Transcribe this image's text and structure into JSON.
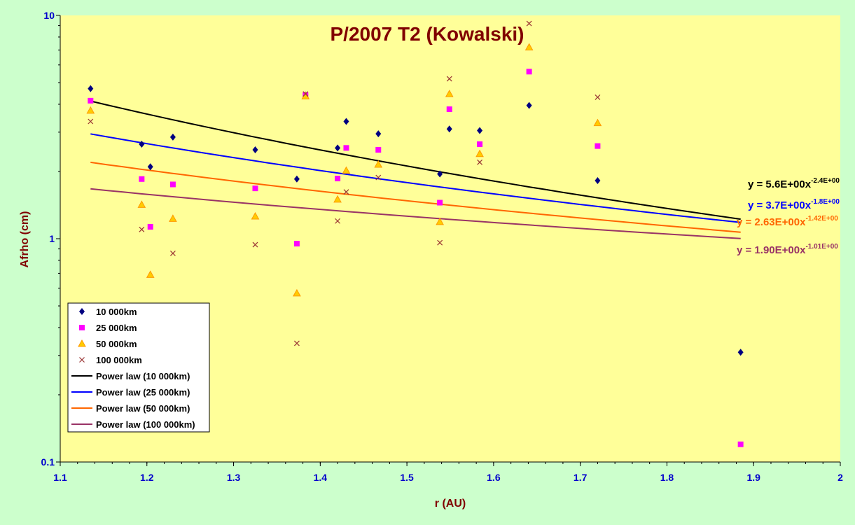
{
  "chart_data": {
    "type": "scatter",
    "title": "P/2007 T2 (Kowalski)",
    "xlabel": "r (AU)",
    "ylabel": "Afrho (cm)",
    "xlim": [
      1.1,
      2.0
    ],
    "ylim": [
      0.1,
      10
    ],
    "yscale": "log",
    "x_ticks": [
      "1.1",
      "1.2",
      "1.3",
      "1.4",
      "1.5",
      "1.6",
      "1.7",
      "1.8",
      "1.9",
      "2"
    ],
    "y_ticks": [
      "0.1",
      "1",
      "10"
    ],
    "grid": false,
    "legend_position": "bottom-left",
    "colors": {
      "plot_background": "#ffff99",
      "chart_background": "#ccffcc",
      "axis_text": "#0000cc",
      "title_text": "#800000"
    },
    "series": [
      {
        "name": "10 000km",
        "marker": "diamond",
        "color": "#000080",
        "x": [
          1.135,
          1.194,
          1.204,
          1.23,
          1.325,
          1.373,
          1.383,
          1.42,
          1.43,
          1.467,
          1.538,
          1.549,
          1.584,
          1.641,
          1.72,
          1.885
        ],
        "y": [
          4.7,
          2.65,
          2.1,
          2.85,
          2.5,
          1.85,
          4.4,
          2.55,
          3.35,
          2.95,
          1.95,
          3.1,
          3.05,
          3.95,
          1.82,
          0.31
        ]
      },
      {
        "name": "25 000km",
        "marker": "square",
        "color": "#ff00ff",
        "x": [
          1.135,
          1.194,
          1.204,
          1.23,
          1.325,
          1.373,
          1.383,
          1.42,
          1.43,
          1.467,
          1.538,
          1.549,
          1.584,
          1.641,
          1.72,
          1.885
        ],
        "y": [
          4.15,
          1.85,
          1.13,
          1.75,
          1.68,
          0.95,
          4.4,
          1.86,
          2.55,
          2.5,
          1.45,
          3.8,
          2.65,
          5.6,
          2.6,
          0.12
        ]
      },
      {
        "name": "50 000km",
        "marker": "triangle",
        "color": "#ff9900",
        "x": [
          1.135,
          1.194,
          1.204,
          1.23,
          1.325,
          1.373,
          1.383,
          1.42,
          1.43,
          1.467,
          1.538,
          1.549,
          1.584,
          1.641,
          1.72
        ],
        "y": [
          3.75,
          1.42,
          0.69,
          1.23,
          1.26,
          0.57,
          4.35,
          1.5,
          2.02,
          2.15,
          1.19,
          4.45,
          2.4,
          7.2,
          3.3
        ]
      },
      {
        "name": "100 000km",
        "marker": "x",
        "color": "#993333",
        "x": [
          1.135,
          1.194,
          1.23,
          1.325,
          1.373,
          1.383,
          1.42,
          1.43,
          1.467,
          1.538,
          1.549,
          1.584,
          1.641,
          1.72
        ],
        "y": [
          3.35,
          1.1,
          0.86,
          0.94,
          0.34,
          4.45,
          1.2,
          1.62,
          1.88,
          0.96,
          5.2,
          2.2,
          9.2,
          4.3
        ]
      }
    ],
    "fits": [
      {
        "name": "Power law (10 000km)",
        "color": "#000000",
        "coef": 5.6,
        "exp": -2.4,
        "x_range": [
          1.135,
          1.885
        ],
        "eq_main": "y = 5.6E+00x",
        "eq_exp": "-2.4E+00",
        "eq_color": "#000000"
      },
      {
        "name": "Power law (25 000km)",
        "color": "#0000ff",
        "coef": 3.7,
        "exp": -1.8,
        "x_range": [
          1.135,
          1.885
        ],
        "eq_main": "y = 3.7E+00x",
        "eq_exp": "-1.8E+00",
        "eq_color": "#0000ff"
      },
      {
        "name": "Power law (50 000km)",
        "color": "#ff6600",
        "coef": 2.63,
        "exp": -1.42,
        "x_range": [
          1.135,
          1.885
        ],
        "eq_main": "y = 2.63E+00x",
        "eq_exp": "-1.42E+00",
        "eq_color": "#ff6600"
      },
      {
        "name": "Power law (100 000km)",
        "color": "#993366",
        "coef": 1.9,
        "exp": -1.01,
        "x_range": [
          1.135,
          1.885
        ],
        "eq_main": "y = 1.90E+00x",
        "eq_exp": "-1.01E+00",
        "eq_color": "#993366"
      }
    ]
  }
}
